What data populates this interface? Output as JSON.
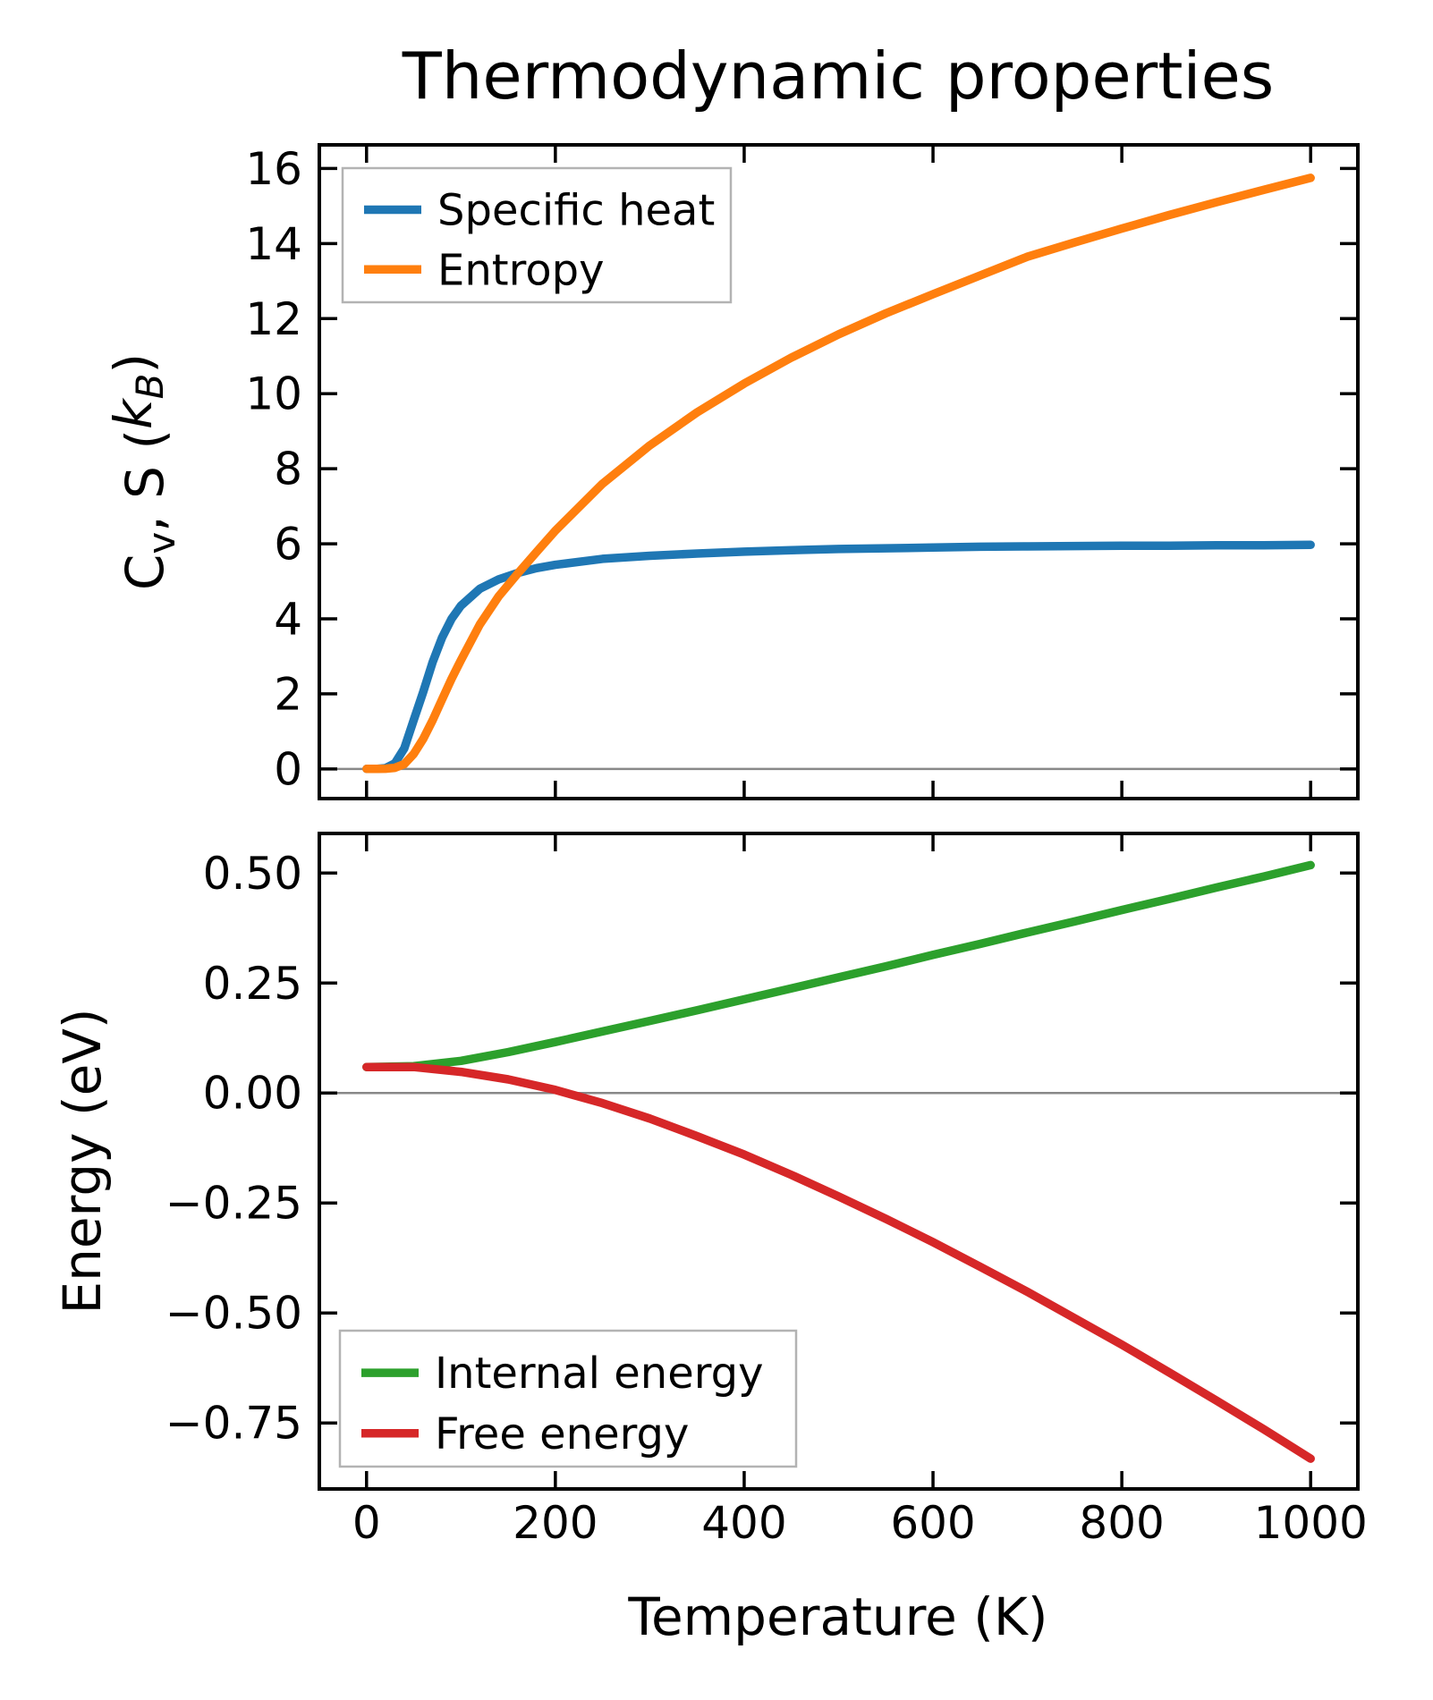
{
  "figure": {
    "title": "Thermodynamic properties",
    "background": "#ffffff"
  },
  "chart_data": [
    {
      "type": "line",
      "title": "Thermodynamic properties",
      "ylabel": "Cv, S (kB)",
      "ylabel_rich": [
        {
          "t": "C"
        },
        {
          "t": "v",
          "sub": true
        },
        {
          "t": ", S ("
        },
        {
          "t": "k",
          "italic": true
        },
        {
          "t": "B",
          "sub": true,
          "italic": true
        },
        {
          "t": ")"
        }
      ],
      "xlim": [
        -50,
        1050
      ],
      "ylim": [
        -0.79,
        16.63
      ],
      "grid": false,
      "zero_line": true,
      "zero_line_color": "#888888",
      "xtick_values": [
        0,
        200,
        400,
        600,
        800,
        1000
      ],
      "xtick_labels": [
        "0",
        "200",
        "400",
        "600",
        "800",
        "1000"
      ],
      "ytick_values": [
        0,
        2,
        4,
        6,
        8,
        10,
        12,
        14,
        16
      ],
      "ytick_labels": [
        "0",
        "2",
        "4",
        "6",
        "8",
        "10",
        "12",
        "14",
        "16"
      ],
      "legend_position": "upper left",
      "x": [
        0,
        10,
        20,
        30,
        40,
        50,
        60,
        70,
        80,
        90,
        100,
        120,
        140,
        160,
        180,
        200,
        250,
        300,
        350,
        400,
        450,
        500,
        550,
        600,
        650,
        700,
        750,
        800,
        850,
        900,
        950,
        1000
      ],
      "series": [
        {
          "name": "Specific heat",
          "color": "#1f77b4",
          "values": [
            0,
            0.001,
            0.02,
            0.15,
            0.55,
            1.3,
            2.05,
            2.85,
            3.5,
            4.0,
            4.35,
            4.8,
            5.05,
            5.22,
            5.35,
            5.44,
            5.6,
            5.68,
            5.74,
            5.79,
            5.83,
            5.86,
            5.88,
            5.9,
            5.92,
            5.93,
            5.94,
            5.95,
            5.95,
            5.96,
            5.96,
            5.97
          ]
        },
        {
          "name": "Entropy",
          "color": "#ff7f0e",
          "values": [
            0,
            0,
            0.005,
            0.03,
            0.13,
            0.4,
            0.8,
            1.3,
            1.85,
            2.4,
            2.9,
            3.85,
            4.6,
            5.2,
            5.78,
            6.35,
            7.6,
            8.62,
            9.5,
            10.27,
            10.96,
            11.58,
            12.14,
            12.65,
            13.15,
            13.65,
            14.03,
            14.4,
            14.76,
            15.1,
            15.43,
            15.75
          ]
        }
      ]
    },
    {
      "type": "line",
      "xlabel": "Temperature (K)",
      "ylabel": "Energy (eV)",
      "xlim": [
        -50,
        1050
      ],
      "ylim": [
        -0.9,
        0.59
      ],
      "grid": false,
      "zero_line": true,
      "zero_line_color": "#888888",
      "xtick_values": [
        0,
        200,
        400,
        600,
        800,
        1000
      ],
      "xtick_labels": [
        "0",
        "200",
        "400",
        "600",
        "800",
        "1000"
      ],
      "ytick_values": [
        0.5,
        0.25,
        0.0,
        -0.25,
        -0.5,
        -0.75
      ],
      "ytick_labels": [
        "0.50",
        "0.25",
        "0.00",
        "−0.25",
        "−0.50",
        "−0.75"
      ],
      "legend_position": "lower left",
      "x": [
        0,
        50,
        100,
        150,
        200,
        250,
        300,
        350,
        400,
        450,
        500,
        550,
        600,
        650,
        700,
        750,
        800,
        850,
        900,
        950,
        1000
      ],
      "series": [
        {
          "name": "Internal energy",
          "color": "#2ca02c",
          "values": [
            0.059,
            0.061,
            0.073,
            0.093,
            0.116,
            0.14,
            0.164,
            0.188,
            0.213,
            0.238,
            0.263,
            0.288,
            0.314,
            0.339,
            0.365,
            0.39,
            0.416,
            0.441,
            0.467,
            0.492,
            0.518
          ]
        },
        {
          "name": "Free energy",
          "color": "#d62728",
          "values": [
            0.059,
            0.059,
            0.048,
            0.031,
            0.007,
            -0.023,
            -0.058,
            -0.098,
            -0.14,
            -0.186,
            -0.235,
            -0.286,
            -0.339,
            -0.395,
            -0.452,
            -0.512,
            -0.572,
            -0.635,
            -0.699,
            -0.764,
            -0.831
          ]
        }
      ]
    }
  ],
  "style": {
    "spine_color": "#000000",
    "legend_border_color": "#b3b3b3",
    "legend_background": "#ffffff"
  }
}
